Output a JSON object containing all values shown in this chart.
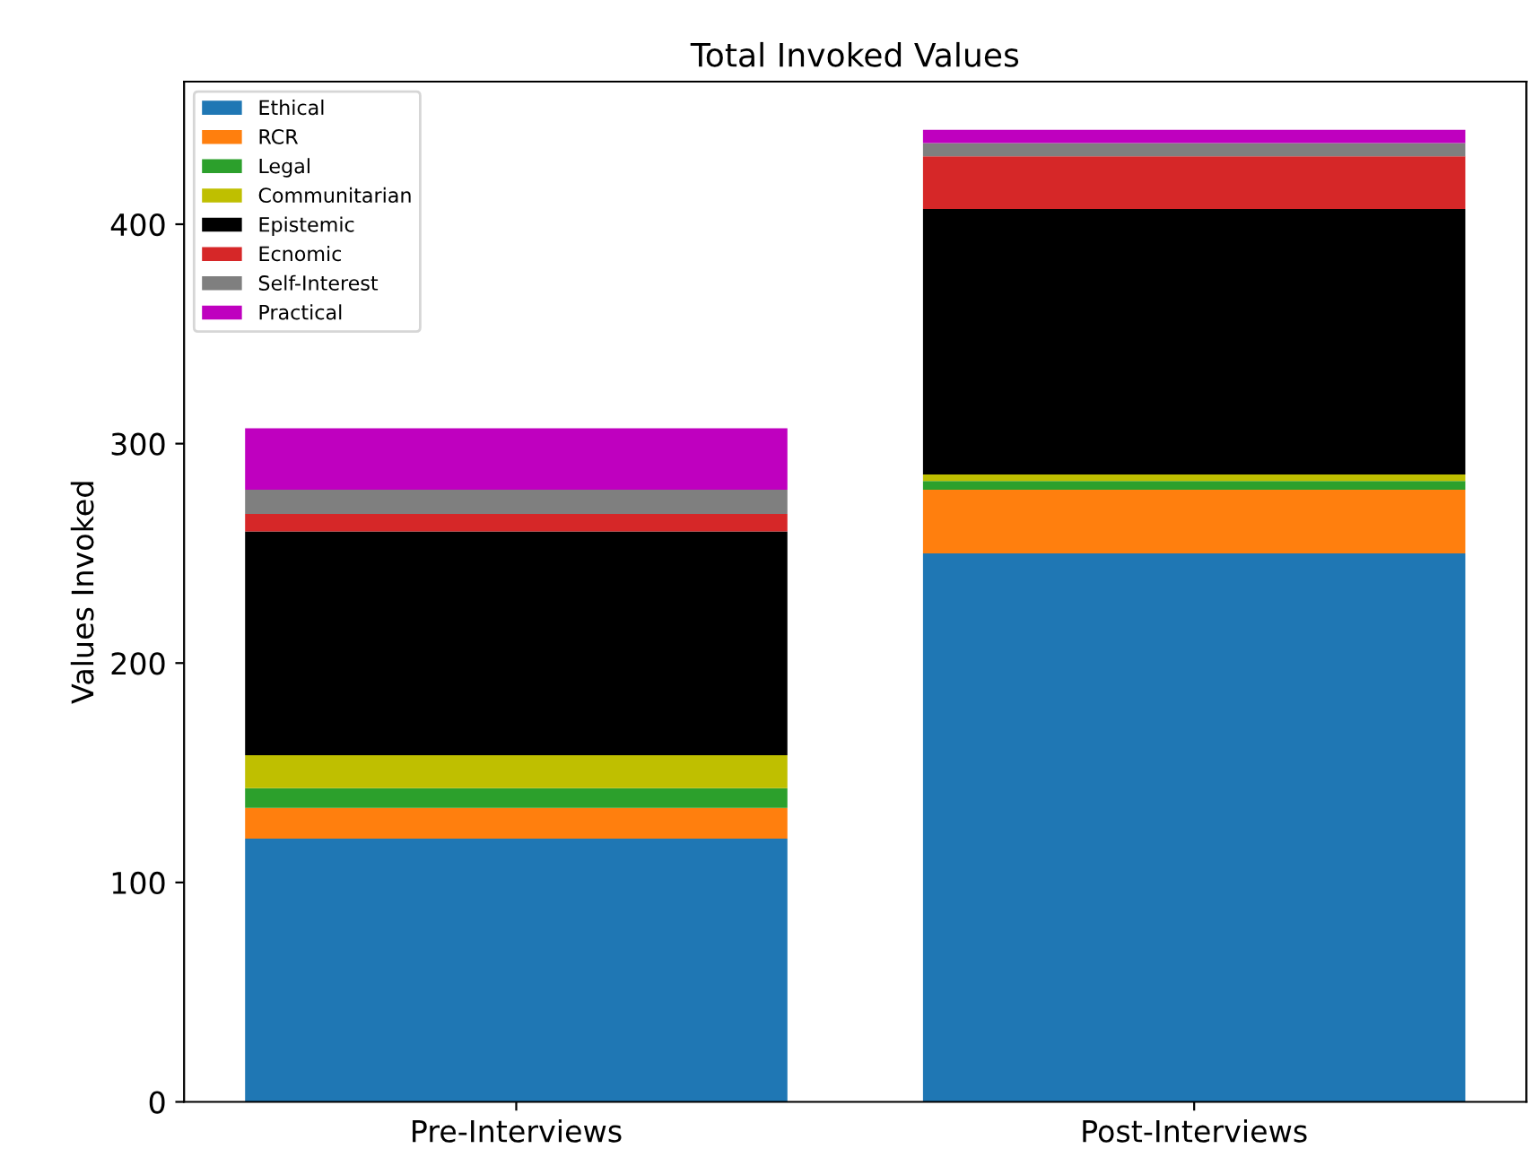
{
  "chart_data": {
    "type": "bar",
    "title": "Total Invoked Values",
    "ylabel": "Values Invoked",
    "categories": [
      "Pre-Interviews",
      "Post-Interviews"
    ],
    "stacked": true,
    "ylim": [
      0,
      465
    ],
    "yticks": [
      0,
      100,
      200,
      300,
      400
    ],
    "legend": "top left",
    "grid": false,
    "series": [
      {
        "name": "Ethical",
        "color": "#1f77b4",
        "values": [
          120,
          250
        ]
      },
      {
        "name": "RCR",
        "color": "#ff7f0e",
        "values": [
          14,
          29
        ]
      },
      {
        "name": "Legal",
        "color": "#2ca02c",
        "values": [
          9,
          4
        ]
      },
      {
        "name": "Communitarian",
        "color": "#bfbf00",
        "values": [
          15,
          3
        ]
      },
      {
        "name": "Epistemic",
        "color": "#000000",
        "values": [
          102,
          121
        ]
      },
      {
        "name": "Ecnomic",
        "color": "#d62728",
        "values": [
          8,
          24
        ]
      },
      {
        "name": "Self-Interest",
        "color": "#7f7f7f",
        "values": [
          11,
          6
        ]
      },
      {
        "name": "Practical",
        "color": "#bf00bf",
        "values": [
          28,
          6
        ]
      }
    ]
  }
}
